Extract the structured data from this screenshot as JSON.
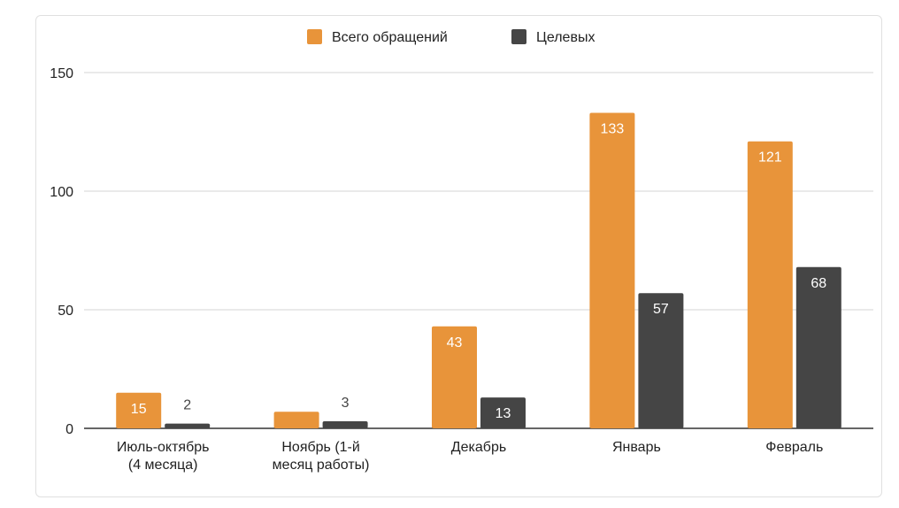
{
  "chart_data": {
    "type": "bar",
    "categories": [
      [
        "Июль-октябрь",
        "(4 месяца)"
      ],
      [
        "Ноябрь (1-й",
        "месяц работы)"
      ],
      [
        "Декабрь"
      ],
      [
        "Январь"
      ],
      [
        "Февраль"
      ]
    ],
    "series": [
      {
        "name": "Всего обращений",
        "color": "#E8943A",
        "values": [
          15,
          7,
          43,
          133,
          121
        ],
        "labels": [
          "15",
          "",
          "43",
          "133",
          "121"
        ]
      },
      {
        "name": "Целевых",
        "color": "#454545",
        "values": [
          2,
          3,
          13,
          57,
          68
        ],
        "labels": [
          "2",
          "3",
          "13",
          "57",
          "68"
        ]
      }
    ],
    "ylim": [
      0,
      150
    ],
    "yticks": [
      0,
      50,
      100,
      150
    ],
    "grid": true,
    "legend": "top-center"
  }
}
